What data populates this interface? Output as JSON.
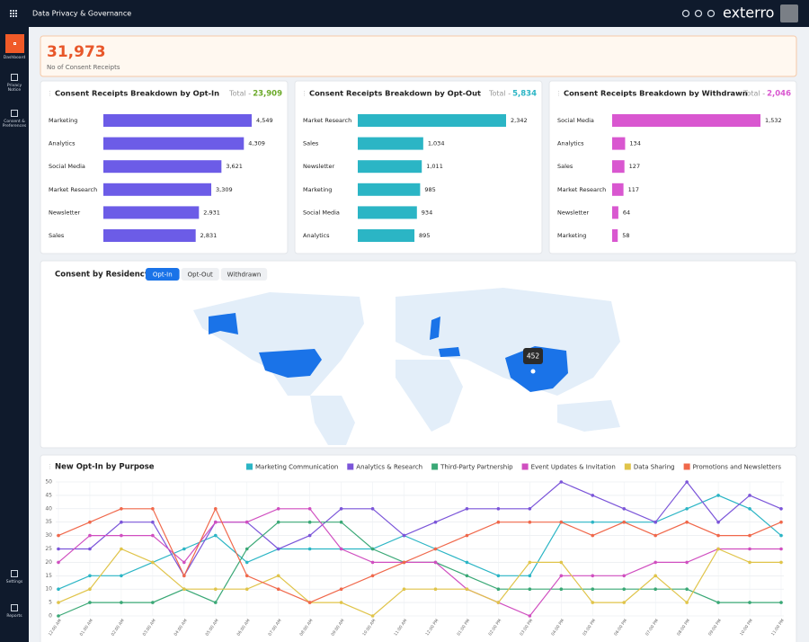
{
  "header": {
    "title": "Data Privacy & Governance",
    "brand": "exterro"
  },
  "sidebar": {
    "items": [
      "Dashboard",
      "Privacy Notice",
      "Consent & Preferences",
      "Settings",
      "Reports"
    ],
    "active": 0
  },
  "kpi": {
    "value": "31,973",
    "label": "No of Consent Receipts"
  },
  "map": {
    "title": "Consent by Residency",
    "tabs": [
      "Opt-In",
      "Opt-Out",
      "Withdrawn"
    ],
    "active_tab": 0,
    "tooltip": "452"
  },
  "chart_data": [
    {
      "type": "bar",
      "title": "Consent Receipts Breakdown by Opt-In",
      "total_label": "Total -",
      "total": "23,909",
      "total_color": "#6aa928",
      "color": "#6c5ce7",
      "categories": [
        "Marketing",
        "Analytics",
        "Social Media",
        "Market Research",
        "Newsletter",
        "Sales"
      ],
      "values": [
        4549,
        4309,
        3621,
        3309,
        2931,
        2831
      ],
      "value_labels": [
        "4,549",
        "4,309",
        "3,621",
        "3,309",
        "2,931",
        "2,831"
      ]
    },
    {
      "type": "bar",
      "title": "Consent Receipts Breakdown by Opt-Out",
      "total_label": "Total -",
      "total": "5,834",
      "total_color": "#2bb5c5",
      "color": "#2bb5c5",
      "categories": [
        "Market Research",
        "Sales",
        "Newsletter",
        "Marketing",
        "Social Media",
        "Analytics"
      ],
      "values": [
        2342,
        1034,
        1011,
        985,
        934,
        895
      ],
      "value_labels": [
        "2,342",
        "1,034",
        "1,011",
        "985",
        "934",
        "895"
      ]
    },
    {
      "type": "bar",
      "title": "Consent Receipts Breakdown by Withdrawn",
      "total_label": "Total -",
      "total": "2,046",
      "total_color": "#d957d0",
      "color": "#d957d0",
      "categories": [
        "Social Media",
        "Analytics",
        "Sales",
        "Market Research",
        "Newsletter",
        "Marketing"
      ],
      "values": [
        1532,
        134,
        127,
        117,
        64,
        58
      ],
      "value_labels": [
        "1,532",
        "134",
        "127",
        "117",
        "64",
        "58"
      ]
    },
    {
      "type": "line",
      "title": "New Opt-In by Purpose",
      "x": [
        "12:00 AM",
        "01:00 AM",
        "02:00 AM",
        "03:00 AM",
        "04:00 AM",
        "05:00 AM",
        "06:00 AM",
        "07:00 AM",
        "08:00 AM",
        "09:00 AM",
        "10:00 AM",
        "11:00 AM",
        "12:00 PM",
        "01:00 PM",
        "02:00 PM",
        "03:00 PM",
        "04:00 PM",
        "05:00 PM",
        "06:00 PM",
        "07:00 PM",
        "08:00 PM",
        "09:00 PM",
        "10:00 PM",
        "11:00 PM"
      ],
      "ylim": [
        0,
        50
      ],
      "yticks": [
        0,
        5,
        10,
        15,
        20,
        25,
        30,
        35,
        40,
        45,
        50
      ],
      "grid": true,
      "series": [
        {
          "name": "Marketing Communication",
          "color": "#2bb5c5",
          "values": [
            10,
            15,
            15,
            20,
            25,
            30,
            20,
            25,
            25,
            25,
            25,
            30,
            25,
            20,
            15,
            15,
            35,
            35,
            35,
            35,
            40,
            45,
            40,
            30
          ]
        },
        {
          "name": "Analytics & Research",
          "color": "#7b55d9",
          "values": [
            25,
            25,
            35,
            35,
            15,
            35,
            35,
            25,
            30,
            40,
            40,
            30,
            35,
            40,
            40,
            40,
            50,
            45,
            40,
            35,
            50,
            35,
            45,
            40
          ]
        },
        {
          "name": "Third-Party Partnership",
          "color": "#3aa876",
          "values": [
            0,
            5,
            5,
            5,
            10,
            5,
            25,
            35,
            35,
            35,
            25,
            20,
            20,
            15,
            10,
            10,
            10,
            10,
            10,
            10,
            10,
            5,
            5,
            5
          ]
        },
        {
          "name": "Event Updates & Invitation",
          "color": "#d04fc0",
          "values": [
            20,
            30,
            30,
            30,
            20,
            35,
            35,
            40,
            40,
            25,
            20,
            20,
            20,
            10,
            5,
            0,
            15,
            15,
            15,
            20,
            20,
            25,
            25,
            25
          ]
        },
        {
          "name": "Data Sharing",
          "color": "#e0c44a",
          "values": [
            5,
            10,
            25,
            20,
            10,
            10,
            10,
            15,
            5,
            5,
            0,
            10,
            10,
            10,
            5,
            20,
            20,
            5,
            5,
            15,
            5,
            25,
            20,
            20
          ]
        },
        {
          "name": "Promotions and Newsletters",
          "color": "#f0684b",
          "values": [
            30,
            35,
            40,
            40,
            15,
            40,
            15,
            10,
            5,
            10,
            15,
            20,
            25,
            30,
            35,
            35,
            35,
            30,
            35,
            30,
            35,
            30,
            30,
            35
          ]
        }
      ]
    }
  ]
}
